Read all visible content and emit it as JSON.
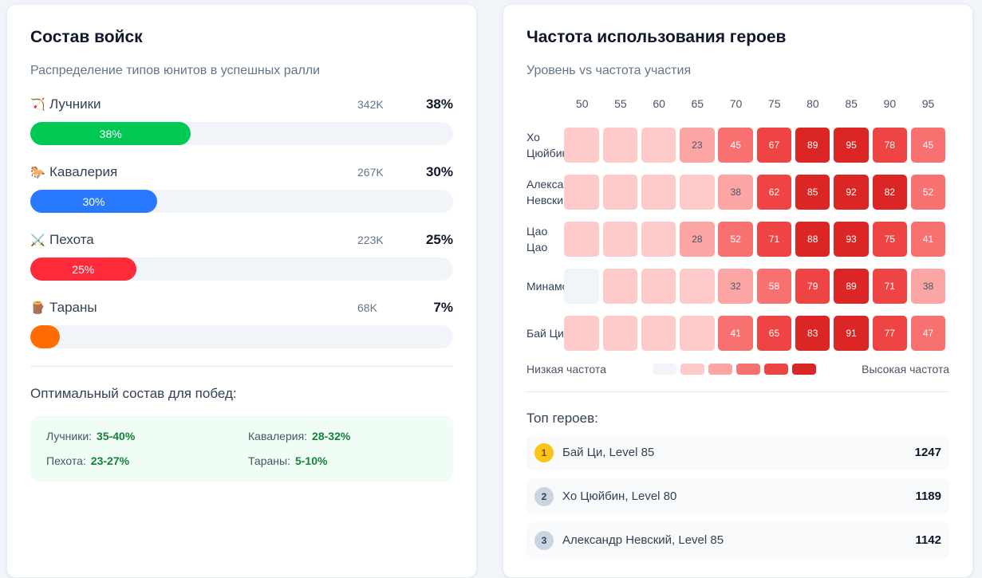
{
  "troops": {
    "title": "Состав войск",
    "subtitle": "Распределение типов юнитов в успешных ралли",
    "items": [
      {
        "icon": "🏹",
        "name": "Лучники",
        "count": "342K",
        "percent": 38,
        "percent_label": "38%",
        "bar_label": "38%",
        "color": "#00c853"
      },
      {
        "icon": "🐎",
        "name": "Кавалерия",
        "count": "267K",
        "percent": 30,
        "percent_label": "30%",
        "bar_label": "30%",
        "color": "#2979ff"
      },
      {
        "icon": "⚔️",
        "name": "Пехота",
        "count": "223K",
        "percent": 25,
        "percent_label": "25%",
        "bar_label": "25%",
        "color": "#ff2a3a"
      },
      {
        "icon": "🪵",
        "name": "Тараны",
        "count": "68K",
        "percent": 7,
        "percent_label": "7%",
        "bar_label": "",
        "color": "#ff6d00"
      }
    ],
    "optimal_title": "Оптимальный состав для побед:",
    "optimal": [
      {
        "label": "Лучники:",
        "value": "35-40%"
      },
      {
        "label": "Кавалерия:",
        "value": "28-32%"
      },
      {
        "label": "Пехота:",
        "value": "23-27%"
      },
      {
        "label": "Тараны:",
        "value": "5-10%"
      }
    ]
  },
  "heroes": {
    "title": "Частота использования героев",
    "subtitle": "Уровень vs частота участия",
    "levels": [
      "50",
      "55",
      "60",
      "65",
      "70",
      "75",
      "80",
      "85",
      "90",
      "95"
    ],
    "rows": [
      {
        "label": "Хо Цюйбин",
        "values": [
          "",
          "",
          "",
          "23",
          "45",
          "67",
          "89",
          "95",
          "78",
          "45"
        ],
        "intensity": [
          1,
          1,
          1,
          2,
          3,
          4,
          5,
          5,
          4,
          3
        ]
      },
      {
        "label": "Александр Невский",
        "values": [
          "",
          "",
          "",
          "",
          "38",
          "62",
          "85",
          "92",
          "82",
          "52"
        ],
        "intensity": [
          1,
          1,
          1,
          1,
          2,
          4,
          5,
          5,
          5,
          3
        ]
      },
      {
        "label": "Цао Цао",
        "values": [
          "",
          "",
          "",
          "28",
          "52",
          "71",
          "88",
          "93",
          "75",
          "41"
        ],
        "intensity": [
          1,
          1,
          1,
          2,
          3,
          4,
          5,
          5,
          4,
          3
        ]
      },
      {
        "label": "Минамото",
        "values": [
          "",
          "",
          "",
          "",
          "32",
          "58",
          "79",
          "89",
          "71",
          "38"
        ],
        "intensity": [
          0,
          1,
          1,
          1,
          2,
          3,
          4,
          5,
          4,
          2
        ]
      },
      {
        "label": "Бай Ци",
        "values": [
          "",
          "",
          "",
          "",
          "41",
          "65",
          "83",
          "91",
          "77",
          "47"
        ],
        "intensity": [
          1,
          1,
          1,
          1,
          3,
          4,
          5,
          5,
          4,
          3
        ]
      }
    ],
    "scale_colors": [
      "#f1f5f9",
      "#fecaca",
      "#fca5a5",
      "#f87171",
      "#ef4444",
      "#dc2626"
    ],
    "legend_low": "Низкая частота",
    "legend_high": "Высокая частота",
    "top_title": "Топ героев:",
    "top": [
      {
        "rank": "1",
        "name": "Бай Ци, Level 85",
        "score": "1247",
        "badge_color": "#fcc419"
      },
      {
        "rank": "2",
        "name": "Хо Цюйбин, Level 80",
        "score": "1189",
        "badge_color": "#cbd5e1"
      },
      {
        "rank": "3",
        "name": "Александр Невский, Level 85",
        "score": "1142",
        "badge_color": "#cbd5e1"
      }
    ]
  }
}
